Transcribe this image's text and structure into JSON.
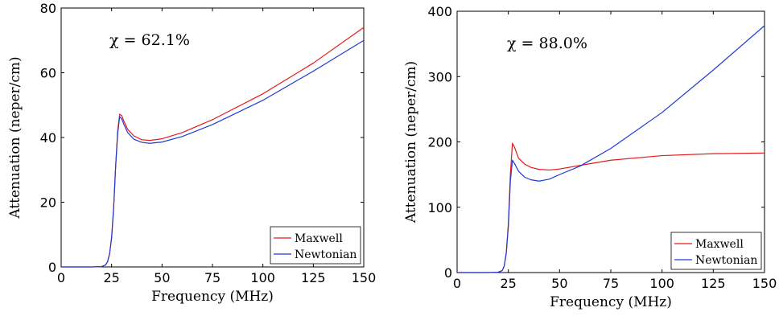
{
  "chart_data": [
    {
      "type": "line",
      "xlabel": "Frequency (MHz)",
      "ylabel": "Attenuation (neper/cm)",
      "xlim": [
        0,
        150
      ],
      "ylim": [
        0,
        80
      ],
      "xticks": [
        0,
        25,
        50,
        75,
        100,
        125,
        150
      ],
      "yticks": [
        0,
        20,
        40,
        60,
        80
      ],
      "annotation": "χ = 62.1%",
      "legend": "bottom-right",
      "series": [
        {
          "name": "Maxwell",
          "color": "#e31a1c",
          "points": [
            [
              0,
              0
            ],
            [
              15,
              0
            ],
            [
              20,
              0.1
            ],
            [
              22,
              0.6
            ],
            [
              23,
              1.6
            ],
            [
              24,
              4
            ],
            [
              25,
              9
            ],
            [
              26,
              18
            ],
            [
              27,
              31
            ],
            [
              28,
              42
            ],
            [
              29,
              47.2
            ],
            [
              30,
              46.8
            ],
            [
              31,
              45.2
            ],
            [
              33,
              42.5
            ],
            [
              36,
              40.5
            ],
            [
              40,
              39.3
            ],
            [
              44,
              39.1
            ],
            [
              50,
              39.6
            ],
            [
              60,
              41.5
            ],
            [
              75,
              45.5
            ],
            [
              100,
              53.5
            ],
            [
              125,
              63
            ],
            [
              150,
              74
            ]
          ]
        },
        {
          "name": "Newtonian",
          "color": "#1f3bd6",
          "points": [
            [
              0,
              0
            ],
            [
              15,
              0
            ],
            [
              20,
              0.1
            ],
            [
              22,
              0.6
            ],
            [
              23,
              1.6
            ],
            [
              24,
              4
            ],
            [
              25,
              9
            ],
            [
              26,
              18
            ],
            [
              27,
              31
            ],
            [
              28,
              41
            ],
            [
              29,
              46.4
            ],
            [
              30,
              45.8
            ],
            [
              31,
              44.2
            ],
            [
              33,
              41.5
            ],
            [
              36,
              39.5
            ],
            [
              40,
              38.5
            ],
            [
              44,
              38.2
            ],
            [
              50,
              38.6
            ],
            [
              60,
              40.3
            ],
            [
              75,
              44
            ],
            [
              100,
              51.5
            ],
            [
              125,
              60.5
            ],
            [
              150,
              70
            ]
          ]
        }
      ]
    },
    {
      "type": "line",
      "xlabel": "Frequency (MHz)",
      "ylabel": "Attenuation (neper/cm)",
      "xlim": [
        0,
        150
      ],
      "ylim": [
        0,
        400
      ],
      "xticks": [
        0,
        25,
        50,
        75,
        100,
        125,
        150
      ],
      "yticks": [
        0,
        100,
        200,
        300,
        400
      ],
      "annotation": "χ = 88.0%",
      "legend": "bottom-right",
      "series": [
        {
          "name": "Maxwell",
          "color": "#e31a1c",
          "points": [
            [
              0,
              0
            ],
            [
              15,
              0
            ],
            [
              20,
              0.5
            ],
            [
              22,
              3
            ],
            [
              23,
              10
            ],
            [
              24,
              30
            ],
            [
              25,
              75
            ],
            [
              26,
              150
            ],
            [
              27,
              198
            ],
            [
              28,
              192
            ],
            [
              30,
              175
            ],
            [
              33,
              166
            ],
            [
              36,
              161
            ],
            [
              40,
              158
            ],
            [
              45,
              157
            ],
            [
              50,
              158.5
            ],
            [
              60,
              164
            ],
            [
              75,
              172
            ],
            [
              100,
              179
            ],
            [
              125,
              182
            ],
            [
              150,
              183
            ]
          ]
        },
        {
          "name": "Newtonian",
          "color": "#1f3bd6",
          "points": [
            [
              0,
              0
            ],
            [
              15,
              0
            ],
            [
              20,
              0.5
            ],
            [
              22,
              3
            ],
            [
              23,
              10
            ],
            [
              24,
              30
            ],
            [
              25,
              70
            ],
            [
              26,
              140
            ],
            [
              27,
              172
            ],
            [
              28,
              167
            ],
            [
              30,
              155
            ],
            [
              33,
              146
            ],
            [
              36,
              142
            ],
            [
              40,
              140
            ],
            [
              45,
              143
            ],
            [
              50,
              150
            ],
            [
              60,
              163
            ],
            [
              75,
              190
            ],
            [
              100,
              245
            ],
            [
              125,
              310
            ],
            [
              150,
              378
            ]
          ]
        }
      ]
    }
  ]
}
